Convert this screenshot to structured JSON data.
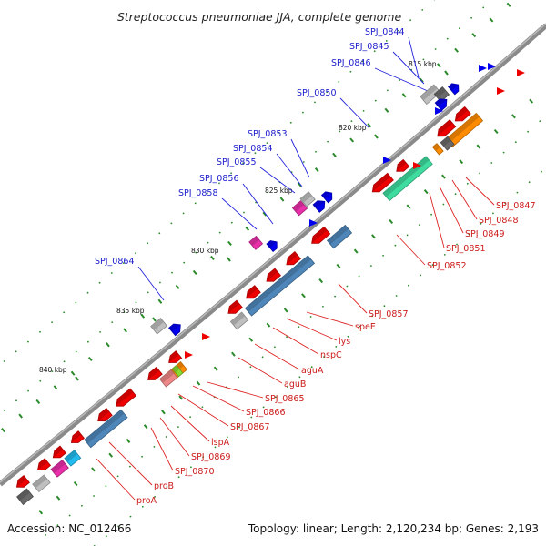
{
  "title": "Streptococcus pneumoniae JJA, complete genome",
  "footer": {
    "accession": "Accession: NC_012466",
    "summary": "Topology: linear; Length: 2,120,234 bp; Genes: 2,193"
  },
  "colors": {
    "backbone": "#8a8a8a",
    "tick": "#2a8a2a",
    "label_forward": "#1b1bcc",
    "label_reverse": "#cc1b1b",
    "leader_forward": "#2323dd",
    "leader_reverse": "#dd2323",
    "cds_red": "#ee0000",
    "cds_blue": "#0000ee",
    "steel": "#4f86b9",
    "grey": "#bfbfbf",
    "darkgrey": "#6a6a6a",
    "orange": "#ff8c00",
    "green": "#3fdca0",
    "magenta": "#e82ea8",
    "cyan": "#22bbee",
    "pink": "#ee8888"
  },
  "scale_labels": [
    "815 kbp",
    "820 kbp",
    "825 kbp",
    "830 kbp",
    "835 kbp",
    "840 kbp"
  ],
  "forward_labels": [
    "SPJ_0844",
    "SPJ_0845",
    "SPJ_0846",
    "SPJ_0850",
    "SPJ_0853",
    "SPJ_0854",
    "SPJ_0855",
    "SPJ_0856",
    "SPJ_0858",
    "SPJ_0864"
  ],
  "reverse_labels": [
    "SPJ_0847",
    "SPJ_0848",
    "SPJ_0849",
    "SPJ_0851",
    "SPJ_0852",
    "SPJ_0857",
    "speE",
    "lys",
    "nspC",
    "aguA",
    "aguB",
    "SPJ_0865",
    "SPJ_0866",
    "SPJ_0867",
    "lspA",
    "SPJ_0869",
    "SPJ_0870",
    "proB",
    "proA"
  ]
}
